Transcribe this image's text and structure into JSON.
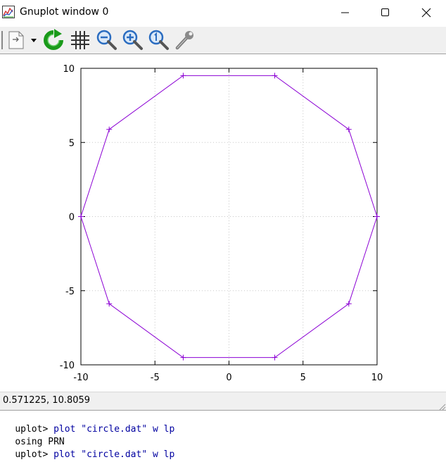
{
  "window": {
    "title": "Gnuplot window 0",
    "controls": [
      "minimize",
      "maximize",
      "close"
    ]
  },
  "toolbar": {
    "icons": [
      "copy-options-icon",
      "dropdown-arrow-icon",
      "replot-icon",
      "grid-icon",
      "zoom-out-icon",
      "zoom-in-icon",
      "zoom-reset-icon",
      "options-wrench-icon"
    ]
  },
  "colors": {
    "series": "#8b00d4",
    "grid": "#c8c8c8",
    "replot_green": "#1a9a1a",
    "zoom_blue": "#2a6cc0"
  },
  "chart_data": {
    "type": "line",
    "series": [
      {
        "style": "linespoints",
        "x": [
          10,
          8.09,
          3.09,
          -3.09,
          -8.09,
          -10,
          -8.09,
          -3.09,
          3.09,
          8.09,
          10
        ],
        "y": [
          0,
          5.88,
          9.51,
          9.51,
          5.88,
          0,
          -5.88,
          -9.51,
          -9.51,
          -5.88,
          0
        ]
      }
    ],
    "xlim": [
      -10,
      10
    ],
    "ylim": [
      -10,
      10
    ],
    "xticks": [
      -10,
      -5,
      0,
      5,
      10
    ],
    "yticks": [
      -10,
      -5,
      0,
      5,
      10
    ],
    "xtick_labels": [
      "-10",
      "-5",
      "0",
      "5",
      "10"
    ],
    "ytick_labels": [
      "-10",
      "-5",
      "0",
      "5",
      "10"
    ],
    "grid": true,
    "title": "",
    "xlabel": "",
    "ylabel": ""
  },
  "status": {
    "coords": "0.571225,  10.8059"
  },
  "console": {
    "lines": [
      {
        "prompt": "uplot> ",
        "cmd": "plot \"circle.dat\" w lp"
      },
      {
        "prompt": "osing PRN",
        "cmd": ""
      },
      {
        "prompt": "uplot> ",
        "cmd": "plot \"circle.dat\" w lp"
      }
    ]
  }
}
